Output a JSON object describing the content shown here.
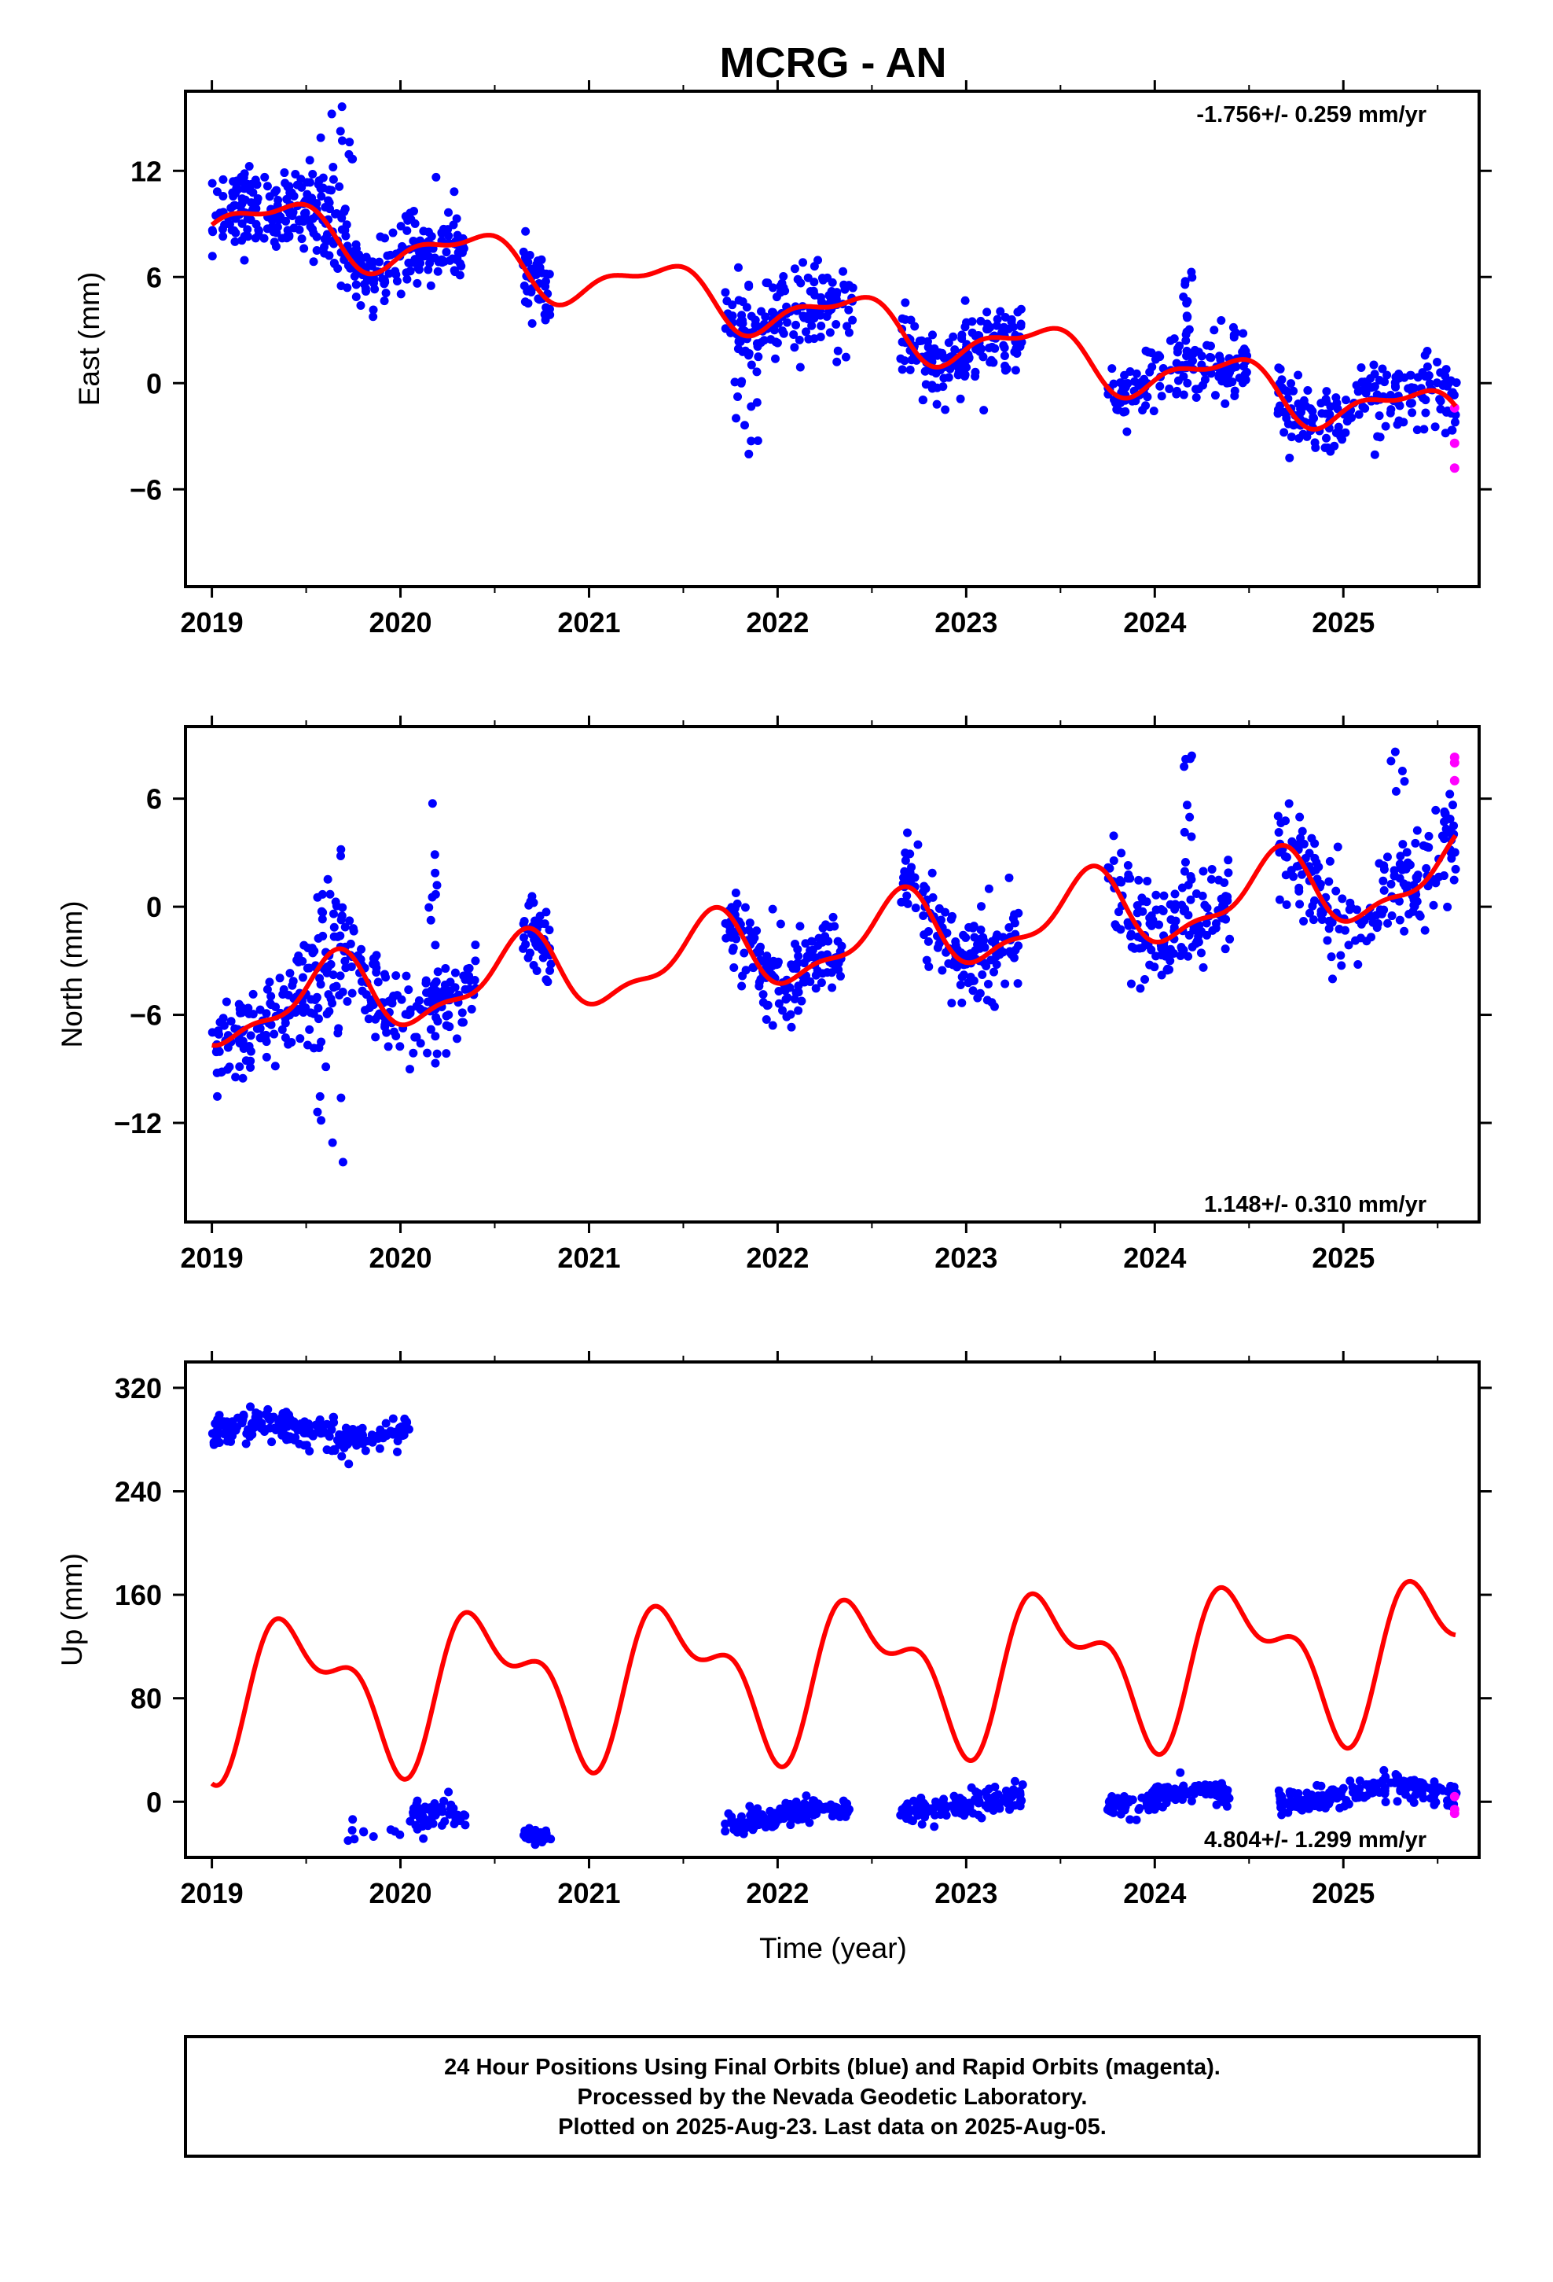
{
  "title": "MCRG - AN",
  "xlabel": "Time (year)",
  "x_ticks": [
    "2019",
    "2020",
    "2021",
    "2022",
    "2023",
    "2024",
    "2025"
  ],
  "colors": {
    "final": "#0000ff",
    "rapid": "#ff00ff",
    "model": "#ff0000",
    "frame": "#000000"
  },
  "chart_data": [
    {
      "type": "scatter",
      "component": "East",
      "ylabel": "East (mm)",
      "rate": "-1.756+/- 0.259 mm/yr",
      "rate_position": "top-right",
      "xlim": [
        2018.86,
        2025.72
      ],
      "ylim": [
        -11.5,
        16.5
      ],
      "y_ticks": [
        12,
        6,
        0,
        -6
      ],
      "y_tick_labels": [
        "12",
        "6",
        "0",
        "−6"
      ],
      "model": {
        "a": 3.7,
        "slope": -1.756,
        "t0": 2022.3,
        "s1": 0.95,
        "c1": -1.0,
        "s2": 0.35,
        "c2": 0.45,
        "gaps": [
          [
            2021.9,
            2022.4
          ]
        ]
      },
      "final_series": [
        {
          "range": [
            2019.0,
            2019.5
          ],
          "count": 120,
          "noise": 1.1,
          "spike": [
            2019.15,
            2019.25,
            12.5
          ]
        },
        {
          "range": [
            2019.5,
            2019.75
          ],
          "count": 70,
          "noise": 1.3,
          "spike": [
            2019.55,
            2019.75,
            16.0
          ]
        },
        {
          "range": [
            2019.75,
            2020.35
          ],
          "count": 140,
          "noise": 1.0,
          "spike": [
            2020.1,
            2020.2,
            7.0
          ]
        },
        {
          "range": [
            2020.65,
            2020.8
          ],
          "count": 40,
          "noise": 1.0
        },
        {
          "range": [
            2021.72,
            2022.4
          ],
          "count": 160,
          "noise": 1.2,
          "spike": [
            2021.75,
            2021.9,
            -4.5
          ]
        },
        {
          "range": [
            2022.65,
            2023.3
          ],
          "count": 150,
          "noise": 1.0
        },
        {
          "range": [
            2023.75,
            2024.5
          ],
          "count": 150,
          "noise": 1.0,
          "spike": [
            2024.15,
            2024.2,
            6.5
          ]
        },
        {
          "range": [
            2024.65,
            2025.6
          ],
          "count": 190,
          "noise": 1.1
        }
      ],
      "rapid_points": [
        {
          "x": 2025.59,
          "y": -1.4
        },
        {
          "x": 2025.59,
          "y": -3.4
        },
        {
          "x": 2025.59,
          "y": -4.8
        }
      ]
    },
    {
      "type": "scatter",
      "component": "North",
      "ylabel": "North (mm)",
      "rate": "1.148+/- 0.310 mm/yr",
      "rate_position": "bottom-right",
      "xlim": [
        2018.86,
        2025.72
      ],
      "ylim": [
        -17.5,
        10.0
      ],
      "y_ticks": [
        6,
        0,
        -6,
        -12
      ],
      "y_tick_labels": [
        "6",
        "0",
        "−6",
        "−12"
      ],
      "model": {
        "a": -2.0,
        "slope": 1.148,
        "t0": 2022.3,
        "s1": -1.5,
        "c1": -1.3,
        "s2": 0.5,
        "c2": -0.6
      },
      "final_series": [
        {
          "range": [
            2019.0,
            2019.5
          ],
          "count": 120,
          "noise": 1.2
        },
        {
          "range": [
            2019.5,
            2019.7
          ],
          "count": 60,
          "noise": 2.5,
          "spike": [
            2019.5,
            2019.7,
            -15.0
          ]
        },
        {
          "range": [
            2019.7,
            2020.4
          ],
          "count": 150,
          "noise": 1.2,
          "spike": [
            2020.15,
            2020.2,
            6.0
          ]
        },
        {
          "range": [
            2020.65,
            2020.8
          ],
          "count": 40,
          "noise": 1.0
        },
        {
          "range": [
            2021.72,
            2022.35
          ],
          "count": 160,
          "noise": 1.2
        },
        {
          "range": [
            2022.65,
            2023.3
          ],
          "count": 150,
          "noise": 1.2
        },
        {
          "range": [
            2023.75,
            2024.4
          ],
          "count": 150,
          "noise": 1.4,
          "spike": [
            2024.15,
            2024.2,
            8.5
          ]
        },
        {
          "range": [
            2024.65,
            2025.6
          ],
          "count": 190,
          "noise": 1.4,
          "spike": [
            2025.25,
            2025.35,
            9.0
          ]
        }
      ],
      "rapid_points": [
        {
          "x": 2025.59,
          "y": 8.0
        },
        {
          "x": 2025.59,
          "y": 8.3
        },
        {
          "x": 2025.59,
          "y": 7.0
        }
      ]
    },
    {
      "type": "scatter",
      "component": "Up",
      "ylabel": "Up (mm)",
      "rate": "4.804+/- 1.299 mm/yr",
      "rate_position": "bottom-right",
      "xlim": [
        2018.86,
        2025.72
      ],
      "ylim": [
        -43,
        340
      ],
      "y_ticks": [
        320,
        240,
        160,
        80,
        0
      ],
      "y_tick_labels": [
        "320",
        "240",
        "160",
        "80",
        "0"
      ],
      "model": {
        "a": 100.0,
        "slope": 4.804,
        "t0": 2022.3,
        "s1": 8.0,
        "c1": -48.0,
        "s2": -15.0,
        "c2": -22.0
      },
      "final_series": [
        {
          "range": [
            2019.0,
            2020.05
          ],
          "count": 230,
          "noise": 6.0,
          "base": 287
        },
        {
          "range": [
            2019.65,
            2020.0
          ],
          "count": 10,
          "noise": 6.0,
          "base": -22
        },
        {
          "range": [
            2020.05,
            2020.35
          ],
          "count": 60,
          "noise": 5.5,
          "base": -14
        },
        {
          "range": [
            2020.65,
            2020.8
          ],
          "count": 30,
          "noise": 5.5,
          "base": -20
        },
        {
          "range": [
            2021.72,
            2022.38
          ],
          "count": 150,
          "noise": 4.5,
          "base": -11
        },
        {
          "range": [
            2022.65,
            2023.3
          ],
          "count": 140,
          "noise": 4.5,
          "base": -2
        },
        {
          "range": [
            2023.75,
            2024.4
          ],
          "count": 140,
          "noise": 4.5,
          "base": 2
        },
        {
          "range": [
            2024.65,
            2025.6
          ],
          "count": 180,
          "noise": 5.0,
          "base": 6
        }
      ],
      "rapid_points": [
        {
          "x": 2025.59,
          "y": 4
        },
        {
          "x": 2025.59,
          "y": -6
        },
        {
          "x": 2025.59,
          "y": -9
        }
      ]
    }
  ],
  "footer": {
    "line1": "24 Hour Positions Using Final Orbits (blue) and Rapid Orbits (magenta).",
    "line2": "Processed by the Nevada Geodetic Laboratory.",
    "line3": "Plotted on 2025-Aug-23. Last data on 2025-Aug-05."
  }
}
